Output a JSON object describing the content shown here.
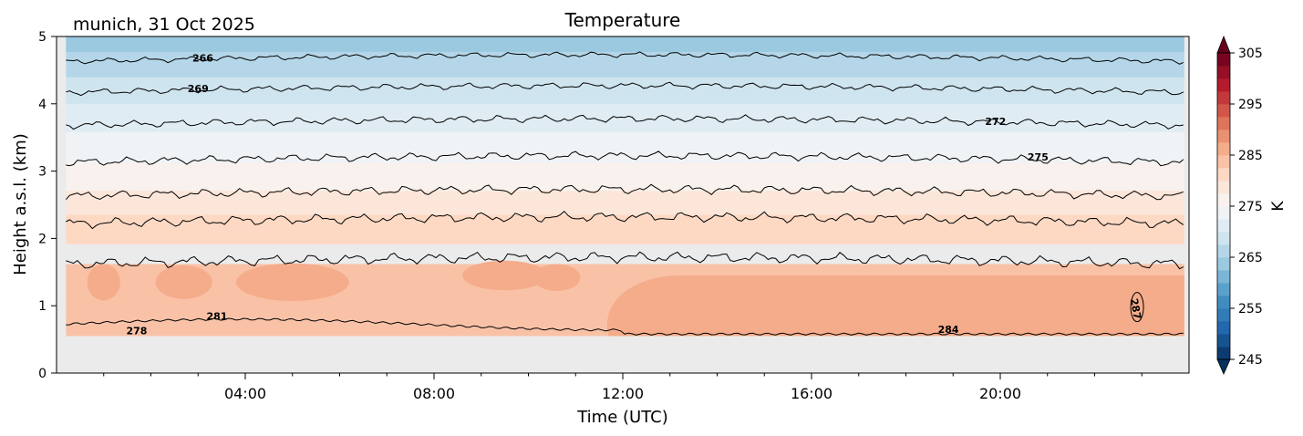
{
  "chart_data": {
    "type": "contourf",
    "title": "Temperature",
    "subtitle": "munich, 31 Oct 2025",
    "xlabel": "Time (UTC)",
    "ylabel": "Height a.s.l. (km)",
    "xlim_hours": [
      0,
      24
    ],
    "ylim": [
      0,
      5
    ],
    "x_ticks": [
      {
        "hour": 4,
        "label": "04:00"
      },
      {
        "hour": 8,
        "label": "08:00"
      },
      {
        "hour": 12,
        "label": "12:00"
      },
      {
        "hour": 16,
        "label": "16:00"
      },
      {
        "hour": 20,
        "label": "20:00"
      }
    ],
    "y_ticks": [
      {
        "value": 0,
        "label": "0"
      },
      {
        "value": 1,
        "label": "1"
      },
      {
        "value": 2,
        "label": "2"
      },
      {
        "value": 3,
        "label": "3"
      },
      {
        "value": 4,
        "label": "4"
      },
      {
        "value": 5,
        "label": "5"
      }
    ],
    "data_start_hour": 0.2,
    "data_end_hour": 23.9,
    "data_bottom_km": 0.55,
    "colorbar": {
      "label": "K",
      "min": 245,
      "max": 305,
      "step": 2.5,
      "extend": "both",
      "ticks": [
        {
          "value": 245,
          "label": "245"
        },
        {
          "value": 255,
          "label": "255"
        },
        {
          "value": 265,
          "label": "265"
        },
        {
          "value": 275,
          "label": "275"
        },
        {
          "value": 285,
          "label": "285"
        },
        {
          "value": 295,
          "label": "295"
        },
        {
          "value": 305,
          "label": "305"
        }
      ]
    },
    "contour_levels": [
      {
        "value": 266,
        "height_km": 4.63
      },
      {
        "value": 269,
        "height_km": 4.17
      },
      {
        "value": 272,
        "height_km": 3.68
      },
      {
        "value": 275,
        "height_km": 3.13
      },
      {
        "value": 278,
        "height_km": 2.63
      },
      {
        "value": 281,
        "height_km": 2.22
      },
      {
        "value": 284,
        "height_km": 1.62
      }
    ],
    "contour_labels": [
      {
        "text": "266",
        "hour": 3.1,
        "km": 4.68
      },
      {
        "text": "269",
        "hour": 3.0,
        "km": 4.23
      },
      {
        "text": "272",
        "hour": 19.9,
        "km": 3.74
      },
      {
        "text": "275",
        "hour": 20.8,
        "km": 3.21
      },
      {
        "text": "278",
        "hour": 1.7,
        "km": 0.63
      },
      {
        "text": "281",
        "hour": 3.4,
        "km": 0.85
      },
      {
        "text": "284",
        "hour": 18.9,
        "km": 0.65
      },
      {
        "text": "287",
        "hour": 22.8,
        "km": 1.0
      }
    ]
  }
}
